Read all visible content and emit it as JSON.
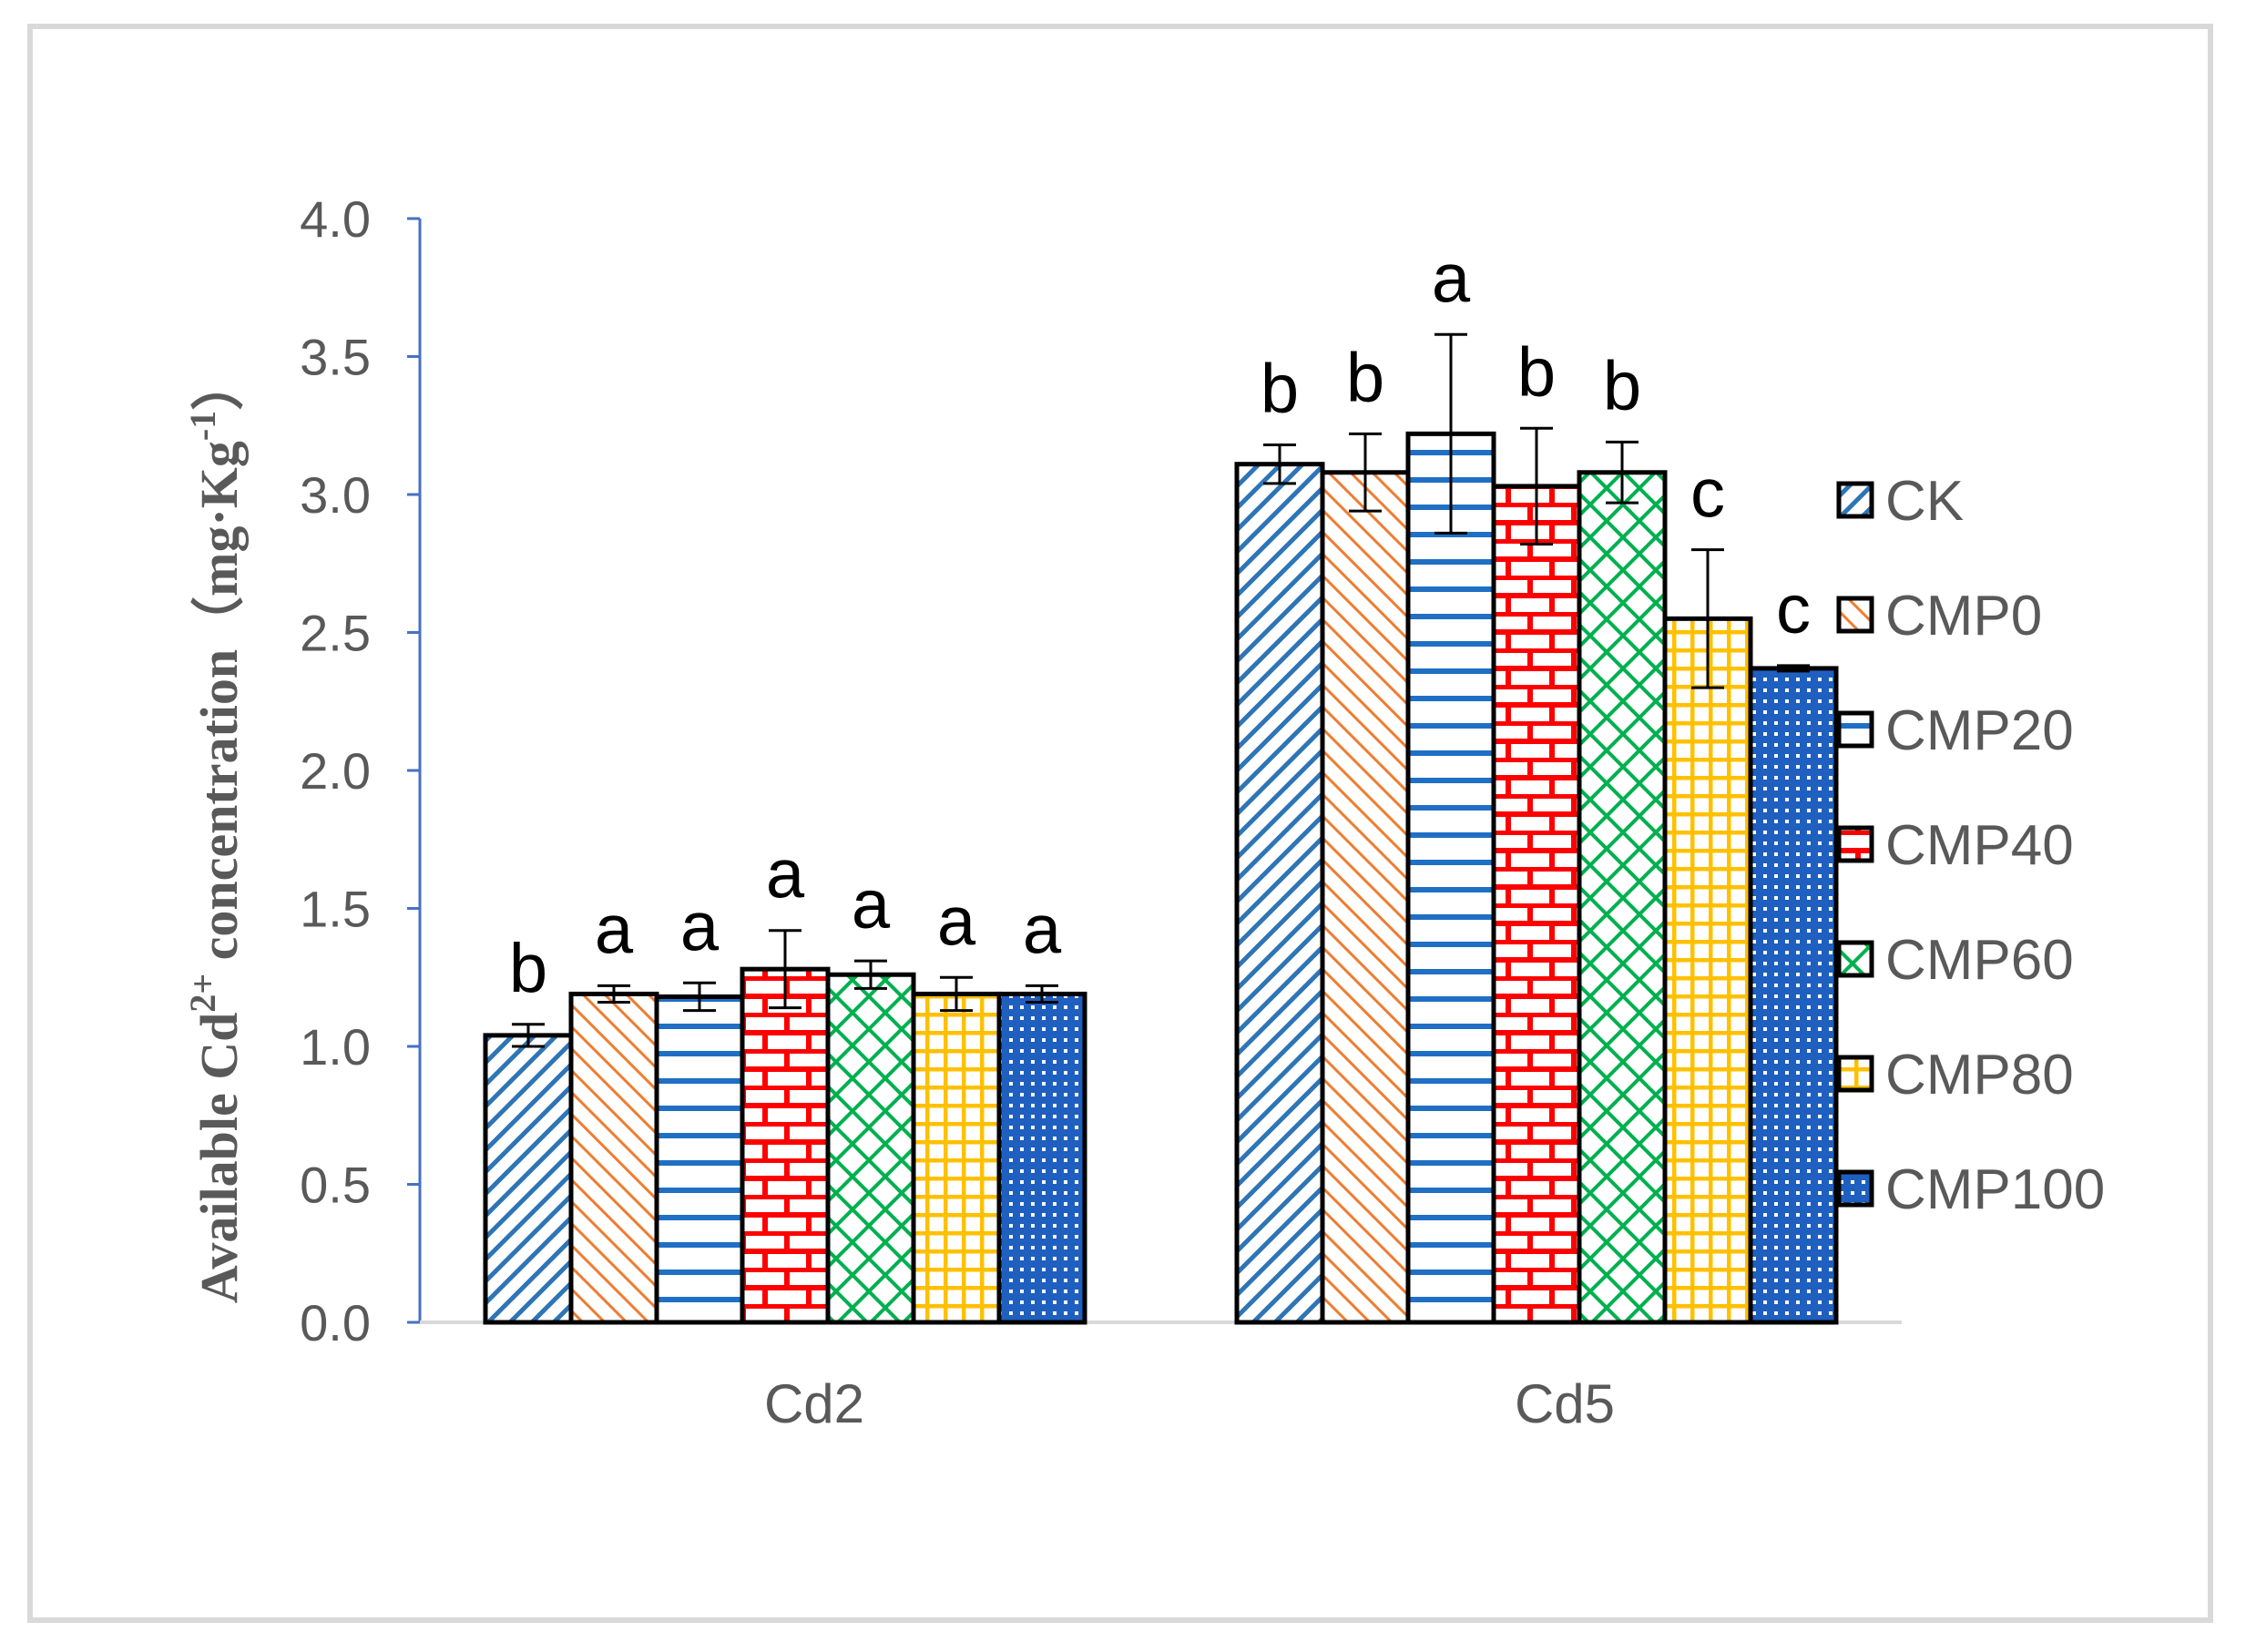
{
  "chart_data": {
    "type": "bar",
    "categories": [
      "Cd2",
      "Cd5"
    ],
    "ylabel_main": "Available  Cd",
    "ylabel_sup": "2+",
    "ylabel_rest": " concentration（mg·Kg",
    "ylabel_sup2": "-1",
    "ylabel_end": "）",
    "ylim": [
      0,
      4.0
    ],
    "yticks": [
      "0.0",
      "0.5",
      "1.0",
      "1.5",
      "2.0",
      "2.5",
      "3.0",
      "3.5",
      "4.0"
    ],
    "grid": false,
    "legend_position": "right",
    "series": [
      {
        "name": "CK",
        "values": [
          1.04,
          3.11
        ],
        "errors": [
          0.04,
          0.07
        ],
        "letters": [
          "b",
          "b"
        ],
        "color": "#2e75b6",
        "pattern": "diag-up"
      },
      {
        "name": "CMP0",
        "values": [
          1.19,
          3.08
        ],
        "errors": [
          0.03,
          0.14
        ],
        "letters": [
          "a",
          "b"
        ],
        "color": "#ed7d31",
        "pattern": "diag-down"
      },
      {
        "name": "CMP20",
        "values": [
          1.18,
          3.22
        ],
        "errors": [
          0.05,
          0.36
        ],
        "letters": [
          "a",
          "a"
        ],
        "color": "#1f6fc5",
        "pattern": "horizontal"
      },
      {
        "name": "CMP40",
        "values": [
          1.28,
          3.03
        ],
        "errors": [
          0.14,
          0.21
        ],
        "letters": [
          "a",
          "b"
        ],
        "color": "#ff0000",
        "pattern": "brick"
      },
      {
        "name": "CMP60",
        "values": [
          1.26,
          3.08
        ],
        "errors": [
          0.05,
          0.11
        ],
        "letters": [
          "a",
          "b"
        ],
        "color": "#00b050",
        "pattern": "lattice"
      },
      {
        "name": "CMP80",
        "values": [
          1.19,
          2.55
        ],
        "errors": [
          0.06,
          0.25
        ],
        "letters": [
          "a",
          "c"
        ],
        "color": "#ffc000",
        "pattern": "grid"
      },
      {
        "name": "CMP100",
        "values": [
          1.19,
          2.37
        ],
        "errors": [
          0.03,
          0.01
        ],
        "letters": [
          "a",
          "c"
        ],
        "color": "#1f5fbf",
        "pattern": "dots"
      }
    ]
  }
}
